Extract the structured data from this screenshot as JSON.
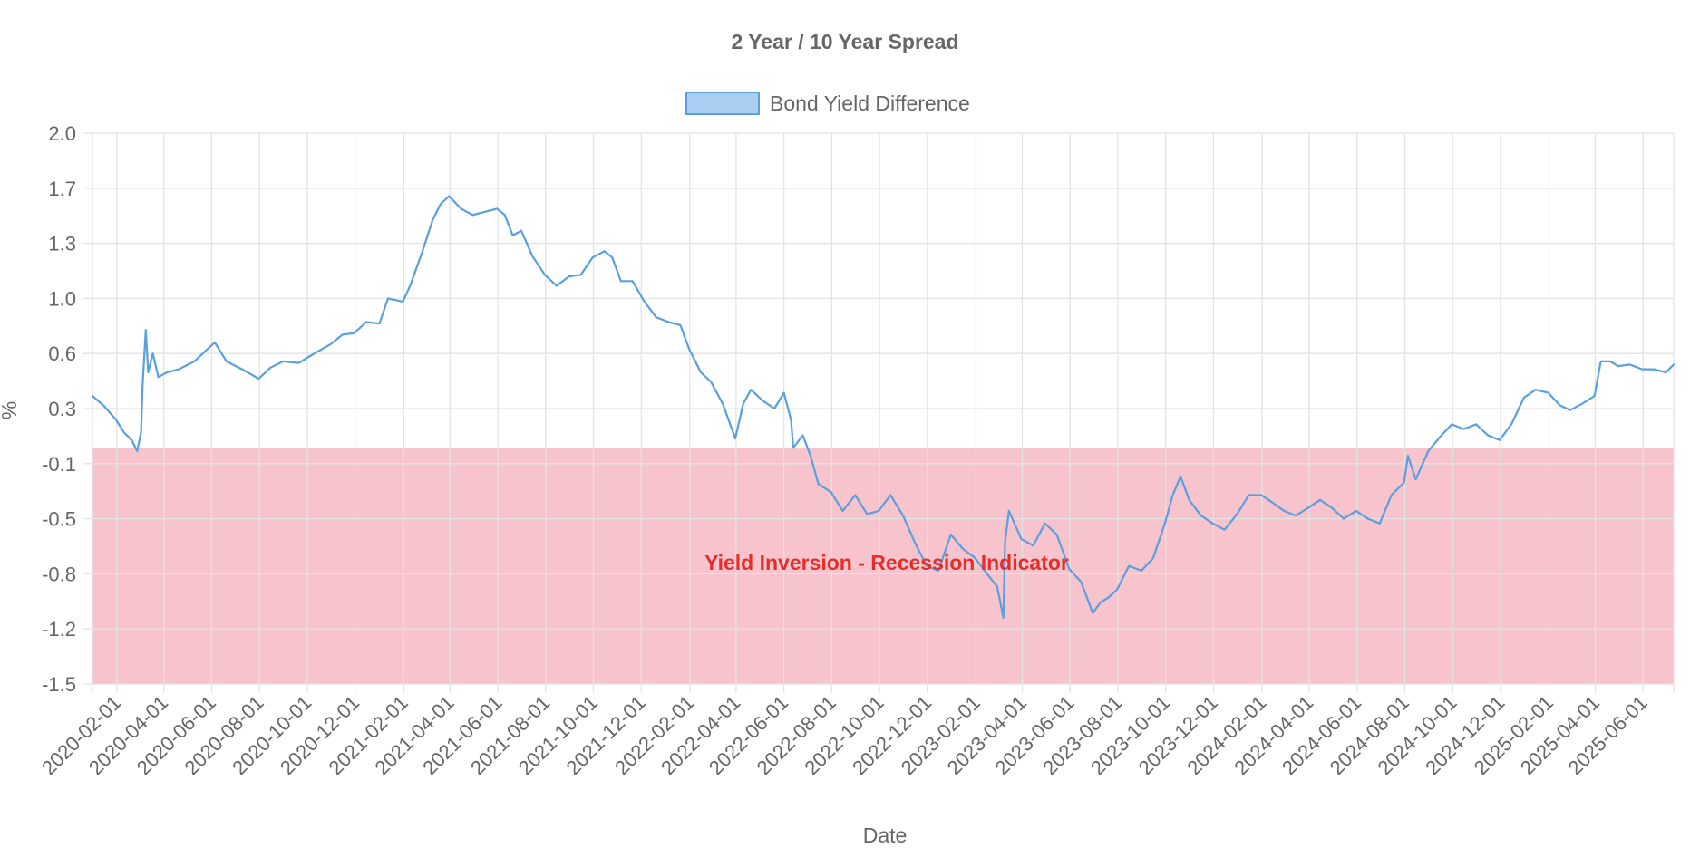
{
  "chart_data": {
    "type": "line",
    "title": "2 Year / 10 Year Spread",
    "xlabel": "Date",
    "ylabel": "%",
    "legend": {
      "position": "top",
      "label": "Bond Yield Difference"
    },
    "grid": true,
    "ylim": [
      -1.5,
      2.0
    ],
    "y_ticks": [
      "2.0",
      "1.7",
      "1.3",
      "1.0",
      "0.6",
      "0.3",
      "-0.1",
      "-0.5",
      "-0.8",
      "-1.2",
      "-1.5"
    ],
    "x_range": [
      "2020-01-01",
      "2025-07-10"
    ],
    "x_ticks": [
      "2020-02-01",
      "2020-04-01",
      "2020-06-01",
      "2020-08-01",
      "2020-10-01",
      "2020-12-01",
      "2021-02-01",
      "2021-04-01",
      "2021-06-01",
      "2021-08-01",
      "2021-10-01",
      "2021-12-01",
      "2022-02-01",
      "2022-04-01",
      "2022-06-01",
      "2022-08-01",
      "2022-10-01",
      "2022-12-01",
      "2023-02-01",
      "2023-04-01",
      "2023-06-01",
      "2023-08-01",
      "2023-10-01",
      "2023-12-01",
      "2024-02-01",
      "2024-04-01",
      "2024-06-01",
      "2024-08-01",
      "2024-10-01",
      "2024-12-01",
      "2025-02-01",
      "2025-04-01",
      "2025-06-01"
    ],
    "annotation": {
      "label": "Yield Inversion - Recession Indicator",
      "y_from": -1.5,
      "y_to": 0.0
    },
    "colors": {
      "line": "#5a9fde",
      "legend_fill": "#aacdf2",
      "inversion_band": "#f7c3cc",
      "annotation_text": "#e52e2a",
      "grid": "#e3e3e3",
      "text": "#666666"
    },
    "series": [
      {
        "name": "Bond Yield Difference",
        "points": [
          [
            "2020-01-01",
            0.33
          ],
          [
            "2020-01-15",
            0.27
          ],
          [
            "2020-01-31",
            0.18
          ],
          [
            "2020-02-10",
            0.1
          ],
          [
            "2020-02-20",
            0.05
          ],
          [
            "2020-02-27",
            -0.02
          ],
          [
            "2020-03-03",
            0.1
          ],
          [
            "2020-03-05",
            0.4
          ],
          [
            "2020-03-09",
            0.75
          ],
          [
            "2020-03-12",
            0.48
          ],
          [
            "2020-03-18",
            0.6
          ],
          [
            "2020-03-25",
            0.45
          ],
          [
            "2020-04-05",
            0.48
          ],
          [
            "2020-04-20",
            0.5
          ],
          [
            "2020-05-10",
            0.55
          ],
          [
            "2020-05-25",
            0.62
          ],
          [
            "2020-06-05",
            0.67
          ],
          [
            "2020-06-20",
            0.55
          ],
          [
            "2020-07-10",
            0.5
          ],
          [
            "2020-07-31",
            0.44
          ],
          [
            "2020-08-15",
            0.51
          ],
          [
            "2020-08-31",
            0.55
          ],
          [
            "2020-09-20",
            0.54
          ],
          [
            "2020-10-10",
            0.6
          ],
          [
            "2020-10-31",
            0.66
          ],
          [
            "2020-11-15",
            0.72
          ],
          [
            "2020-11-30",
            0.73
          ],
          [
            "2020-12-15",
            0.8
          ],
          [
            "2021-01-01",
            0.79
          ],
          [
            "2021-01-12",
            0.95
          ],
          [
            "2021-01-31",
            0.93
          ],
          [
            "2021-02-10",
            1.04
          ],
          [
            "2021-02-25",
            1.25
          ],
          [
            "2021-03-10",
            1.45
          ],
          [
            "2021-03-20",
            1.55
          ],
          [
            "2021-03-31",
            1.6
          ],
          [
            "2021-04-15",
            1.52
          ],
          [
            "2021-04-30",
            1.48
          ],
          [
            "2021-05-15",
            1.5
          ],
          [
            "2021-05-31",
            1.52
          ],
          [
            "2021-06-10",
            1.48
          ],
          [
            "2021-06-20",
            1.35
          ],
          [
            "2021-07-01",
            1.38
          ],
          [
            "2021-07-15",
            1.22
          ],
          [
            "2021-07-31",
            1.1
          ],
          [
            "2021-08-15",
            1.03
          ],
          [
            "2021-08-31",
            1.09
          ],
          [
            "2021-09-15",
            1.1
          ],
          [
            "2021-09-30",
            1.21
          ],
          [
            "2021-10-15",
            1.25
          ],
          [
            "2021-10-25",
            1.21
          ],
          [
            "2021-11-05",
            1.06
          ],
          [
            "2021-11-20",
            1.06
          ],
          [
            "2021-12-05",
            0.93
          ],
          [
            "2021-12-20",
            0.83
          ],
          [
            "2022-01-05",
            0.8
          ],
          [
            "2022-01-20",
            0.78
          ],
          [
            "2022-01-31",
            0.63
          ],
          [
            "2022-02-15",
            0.48
          ],
          [
            "2022-02-28",
            0.42
          ],
          [
            "2022-03-15",
            0.28
          ],
          [
            "2022-03-31",
            0.06
          ],
          [
            "2022-04-10",
            0.28
          ],
          [
            "2022-04-20",
            0.37
          ],
          [
            "2022-05-05",
            0.3
          ],
          [
            "2022-05-20",
            0.25
          ],
          [
            "2022-06-01",
            0.35
          ],
          [
            "2022-06-10",
            0.18
          ],
          [
            "2022-06-13",
            0.0
          ],
          [
            "2022-06-25",
            0.08
          ],
          [
            "2022-07-05",
            -0.05
          ],
          [
            "2022-07-15",
            -0.23
          ],
          [
            "2022-07-31",
            -0.28
          ],
          [
            "2022-08-15",
            -0.4
          ],
          [
            "2022-08-31",
            -0.3
          ],
          [
            "2022-09-15",
            -0.42
          ],
          [
            "2022-09-30",
            -0.4
          ],
          [
            "2022-10-15",
            -0.3
          ],
          [
            "2022-10-31",
            -0.43
          ],
          [
            "2022-11-15",
            -0.6
          ],
          [
            "2022-11-30",
            -0.75
          ],
          [
            "2022-12-15",
            -0.78
          ],
          [
            "2022-12-31",
            -0.55
          ],
          [
            "2023-01-15",
            -0.64
          ],
          [
            "2023-01-31",
            -0.7
          ],
          [
            "2023-02-15",
            -0.8
          ],
          [
            "2023-02-28",
            -0.88
          ],
          [
            "2023-03-08",
            -1.08
          ],
          [
            "2023-03-10",
            -0.6
          ],
          [
            "2023-03-15",
            -0.4
          ],
          [
            "2023-03-31",
            -0.58
          ],
          [
            "2023-04-15",
            -0.62
          ],
          [
            "2023-04-30",
            -0.48
          ],
          [
            "2023-05-15",
            -0.55
          ],
          [
            "2023-05-31",
            -0.77
          ],
          [
            "2023-06-15",
            -0.85
          ],
          [
            "2023-06-30",
            -1.05
          ],
          [
            "2023-07-10",
            -0.98
          ],
          [
            "2023-07-20",
            -0.95
          ],
          [
            "2023-07-31",
            -0.9
          ],
          [
            "2023-08-15",
            -0.75
          ],
          [
            "2023-08-31",
            -0.78
          ],
          [
            "2023-09-15",
            -0.7
          ],
          [
            "2023-09-30",
            -0.48
          ],
          [
            "2023-10-10",
            -0.3
          ],
          [
            "2023-10-20",
            -0.18
          ],
          [
            "2023-10-31",
            -0.33
          ],
          [
            "2023-11-15",
            -0.43
          ],
          [
            "2023-11-30",
            -0.48
          ],
          [
            "2023-12-15",
            -0.52
          ],
          [
            "2023-12-31",
            -0.42
          ],
          [
            "2024-01-15",
            -0.3
          ],
          [
            "2024-01-31",
            -0.3
          ],
          [
            "2024-02-15",
            -0.35
          ],
          [
            "2024-02-29",
            -0.4
          ],
          [
            "2024-03-15",
            -0.43
          ],
          [
            "2024-03-31",
            -0.38
          ],
          [
            "2024-04-15",
            -0.33
          ],
          [
            "2024-04-30",
            -0.38
          ],
          [
            "2024-05-15",
            -0.45
          ],
          [
            "2024-05-31",
            -0.4
          ],
          [
            "2024-06-15",
            -0.45
          ],
          [
            "2024-06-30",
            -0.48
          ],
          [
            "2024-07-15",
            -0.3
          ],
          [
            "2024-07-31",
            -0.22
          ],
          [
            "2024-08-05",
            -0.05
          ],
          [
            "2024-08-15",
            -0.2
          ],
          [
            "2024-08-31",
            -0.02
          ],
          [
            "2024-09-15",
            0.07
          ],
          [
            "2024-09-30",
            0.15
          ],
          [
            "2024-10-15",
            0.12
          ],
          [
            "2024-10-31",
            0.15
          ],
          [
            "2024-11-15",
            0.08
          ],
          [
            "2024-11-30",
            0.05
          ],
          [
            "2024-12-15",
            0.15
          ],
          [
            "2024-12-31",
            0.32
          ],
          [
            "2025-01-15",
            0.37
          ],
          [
            "2025-01-31",
            0.35
          ],
          [
            "2025-02-15",
            0.27
          ],
          [
            "2025-02-28",
            0.24
          ],
          [
            "2025-03-15",
            0.28
          ],
          [
            "2025-03-31",
            0.33
          ],
          [
            "2025-04-08",
            0.55
          ],
          [
            "2025-04-20",
            0.55
          ],
          [
            "2025-04-30",
            0.52
          ],
          [
            "2025-05-15",
            0.53
          ],
          [
            "2025-05-31",
            0.5
          ],
          [
            "2025-06-15",
            0.5
          ],
          [
            "2025-06-30",
            0.48
          ],
          [
            "2025-07-10",
            0.53
          ]
        ]
      }
    ]
  }
}
